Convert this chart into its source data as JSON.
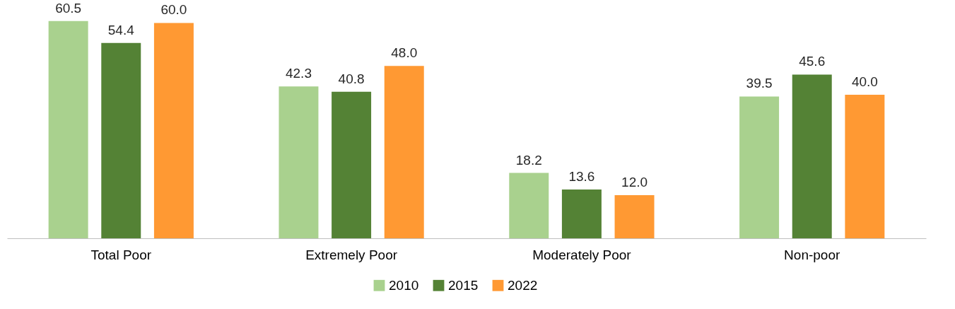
{
  "chart_data": {
    "type": "bar",
    "categories": [
      "Total Poor",
      "Extremely Poor",
      "Moderately Poor",
      "Non-poor"
    ],
    "series": [
      {
        "name": "2010",
        "color": "#a9d18e",
        "values": [
          60.5,
          42.3,
          18.2,
          39.5
        ],
        "value_labels": [
          "60.5",
          "42.3",
          "18.2",
          "39.5"
        ]
      },
      {
        "name": "2015",
        "color": "#548235",
        "values": [
          54.4,
          40.8,
          13.6,
          45.6
        ],
        "value_labels": [
          "54.4",
          "40.8",
          "13.6",
          "45.6"
        ]
      },
      {
        "name": "2022",
        "color": "#ff9933",
        "values": [
          60.0,
          48.0,
          12.0,
          40.0
        ],
        "value_labels": [
          "60.0",
          "48.0",
          "12.0",
          "40.0"
        ]
      }
    ],
    "grid": false,
    "legend": "bottom"
  }
}
